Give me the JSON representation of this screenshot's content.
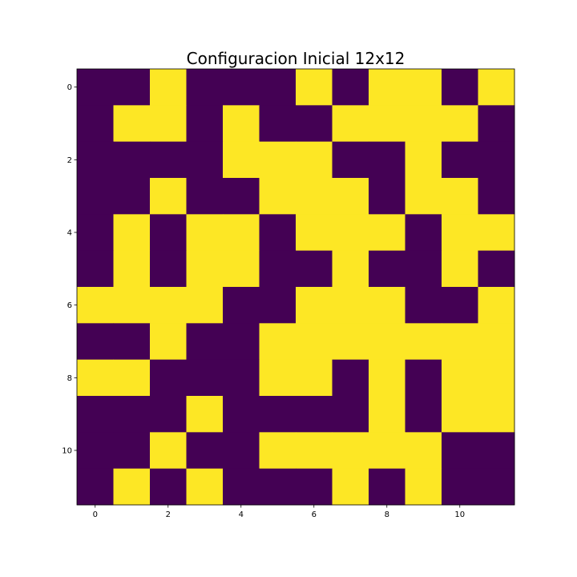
{
  "chart_data": {
    "type": "heatmap",
    "title": "Configuracion Inicial 12x12",
    "xlabel": "",
    "ylabel": "",
    "rows": 12,
    "cols": 12,
    "xlim": [
      -0.5,
      11.5
    ],
    "ylim": [
      11.5,
      -0.5
    ],
    "x_ticks": [
      0,
      2,
      4,
      6,
      8,
      10
    ],
    "y_ticks": [
      0,
      2,
      4,
      6,
      8,
      10
    ],
    "x_tick_labels": [
      "0",
      "2",
      "4",
      "6",
      "8",
      "10"
    ],
    "y_tick_labels": [
      "0",
      "2",
      "4",
      "6",
      "8",
      "10"
    ],
    "colormap": "viridis",
    "colors": {
      "0": "#440154",
      "1": "#fde725"
    },
    "grid": false,
    "legend": "none",
    "values": [
      [
        0,
        0,
        1,
        0,
        0,
        0,
        1,
        0,
        1,
        1,
        0,
        1
      ],
      [
        0,
        1,
        1,
        0,
        1,
        0,
        0,
        1,
        1,
        1,
        1,
        0
      ],
      [
        0,
        0,
        0,
        0,
        1,
        1,
        1,
        0,
        0,
        1,
        0,
        0
      ],
      [
        0,
        0,
        1,
        0,
        0,
        1,
        1,
        1,
        0,
        1,
        1,
        0
      ],
      [
        0,
        1,
        0,
        1,
        1,
        0,
        1,
        1,
        1,
        0,
        1,
        1
      ],
      [
        0,
        1,
        0,
        1,
        1,
        0,
        0,
        1,
        0,
        0,
        1,
        0
      ],
      [
        1,
        1,
        1,
        1,
        0,
        0,
        1,
        1,
        1,
        0,
        0,
        1
      ],
      [
        0,
        0,
        1,
        0,
        0,
        1,
        1,
        1,
        1,
        1,
        1,
        1
      ],
      [
        1,
        1,
        0,
        0,
        0,
        1,
        1,
        0,
        1,
        0,
        1,
        1
      ],
      [
        0,
        0,
        0,
        1,
        0,
        0,
        0,
        0,
        1,
        0,
        1,
        1
      ],
      [
        0,
        0,
        1,
        0,
        0,
        1,
        1,
        1,
        1,
        1,
        0,
        0
      ],
      [
        0,
        1,
        0,
        1,
        0,
        0,
        0,
        1,
        0,
        1,
        0,
        0
      ]
    ]
  }
}
